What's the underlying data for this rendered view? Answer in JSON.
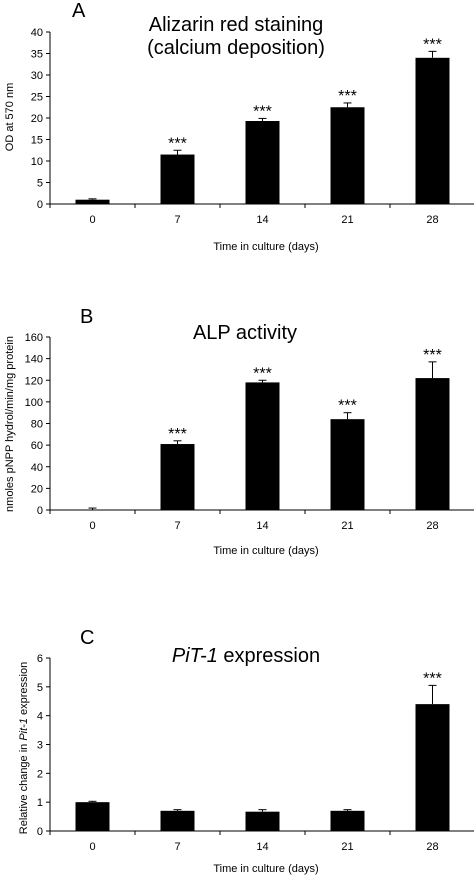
{
  "chart_data": [
    {
      "type": "bar",
      "panel": "A",
      "title_lines": [
        "Alizarin red staining",
        "(calcium deposition)"
      ],
      "xlabel": "Time in culture (days)",
      "ylabel": "OD at 570 nm",
      "categories": [
        "0",
        "7",
        "14",
        "21",
        "28"
      ],
      "values": [
        1.0,
        11.5,
        19.3,
        22.5,
        34.0
      ],
      "errors": [
        0.2,
        1.0,
        0.6,
        1.0,
        1.5
      ],
      "significance": [
        "",
        "***",
        "***",
        "***",
        "***"
      ],
      "ylim": [
        0,
        40
      ],
      "yticks": [
        "0",
        "5",
        "10",
        "15",
        "20",
        "25",
        "30",
        "35",
        "40"
      ],
      "bar_color": "#000000",
      "grid": false
    },
    {
      "type": "bar",
      "panel": "B",
      "title_lines": [
        "ALP activity"
      ],
      "xlabel": "Time in culture (days)",
      "ylabel": "nmoles pNPP hydrol/min/mg protein",
      "categories": [
        "0",
        "7",
        "14",
        "21",
        "28"
      ],
      "values": [
        0.3,
        61,
        118,
        84,
        122
      ],
      "errors": [
        1.5,
        3,
        2,
        6,
        15
      ],
      "significance": [
        "",
        "***",
        "***",
        "***",
        "***"
      ],
      "ylim": [
        0,
        160
      ],
      "yticks": [
        "0",
        "20",
        "40",
        "60",
        "80",
        "100",
        "120",
        "140",
        "160"
      ],
      "bar_color": "#000000",
      "grid": false
    },
    {
      "type": "bar",
      "panel": "C",
      "title_gene": "PiT-1",
      "title_rest": " expression",
      "xlabel": "Time in culture (days)",
      "ylabel_pre": "Relative change in ",
      "ylabel_gene": "Pit-1",
      "ylabel_post": " expression",
      "categories": [
        "0",
        "7",
        "14",
        "21",
        "28"
      ],
      "values": [
        1.0,
        0.7,
        0.67,
        0.7,
        4.4
      ],
      "errors": [
        0.03,
        0.04,
        0.07,
        0.04,
        0.65
      ],
      "significance": [
        "",
        "",
        "",
        "",
        "***"
      ],
      "ylim": [
        0,
        6
      ],
      "yticks": [
        "0",
        "1",
        "2",
        "3",
        "4",
        "5",
        "6"
      ],
      "bar_color": "#000000",
      "grid": false
    }
  ]
}
